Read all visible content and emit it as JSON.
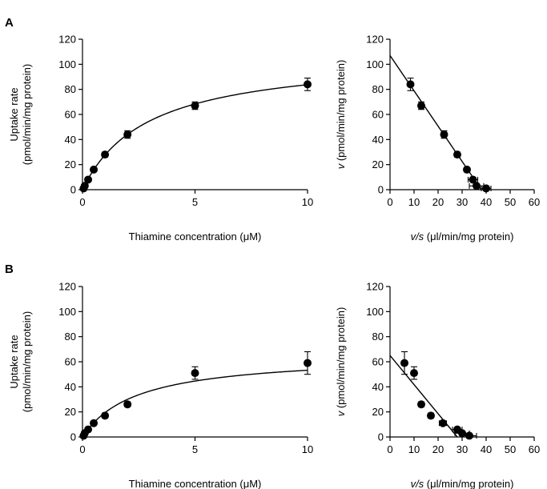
{
  "panels": [
    {
      "letter": "A"
    },
    {
      "letter": "B"
    }
  ],
  "chart_data": [
    {
      "panel": "A",
      "type": "scatter",
      "title": "",
      "xlabel": "Thiamine concentration (μM)",
      "ylabel": "Uptake rate (pmol/min/mg protein)",
      "ylabel_lines": [
        "Uptake rate",
        "(pmol/min/mg protein)"
      ],
      "xlim": [
        0,
        10
      ],
      "ylim": [
        0,
        120
      ],
      "xticks": [
        0,
        5,
        10
      ],
      "yticks": [
        0,
        20,
        40,
        60,
        80,
        100,
        120
      ],
      "grid": false,
      "series": [
        {
          "x": [
            0.05,
            0.1,
            0.25,
            0.5,
            1,
            2,
            5,
            10
          ],
          "y": [
            1,
            3,
            8,
            16,
            28,
            44,
            67,
            84
          ],
          "yerr": [
            0.5,
            0.8,
            1,
            1.5,
            2,
            3,
            3,
            5
          ]
        }
      ],
      "fit": {
        "model": "michaelis-menten",
        "vmax": 108,
        "km": 2.9
      }
    },
    {
      "panel": "A",
      "type": "scatter",
      "title": "",
      "xlabel": "v/s (μl/min/mg protein)",
      "xlabel_parts": [
        "v/s",
        " (μl/min/mg protein)"
      ],
      "ylabel": "v (pmol/min/mg protein)",
      "ylabel_parts": [
        "v",
        " (pmol/min/mg protein)"
      ],
      "xlim": [
        0,
        60
      ],
      "ylim": [
        0,
        120
      ],
      "xticks": [
        0,
        10,
        20,
        30,
        40,
        50,
        60
      ],
      "yticks": [
        0,
        20,
        40,
        60,
        80,
        100,
        120
      ],
      "grid": false,
      "series": [
        {
          "x": [
            8.5,
            13,
            22.5,
            28,
            32,
            34.5,
            36,
            40
          ],
          "y": [
            84,
            67,
            44,
            28,
            16,
            8,
            3,
            1
          ],
          "yerr": [
            5,
            3,
            3,
            2,
            1.5,
            1,
            0.8,
            0.5
          ],
          "xerr": [
            1,
            1,
            1,
            1,
            1,
            2,
            3,
            2
          ]
        }
      ],
      "fit": {
        "model": "linear",
        "x": [
          0,
          38
        ],
        "y": [
          107,
          0
        ]
      }
    },
    {
      "panel": "B",
      "type": "scatter",
      "title": "",
      "xlabel": "Thiamine concentration (μM)",
      "ylabel": "Uptake rate (pmol/min/mg protein)",
      "ylabel_lines": [
        "Uptake rate",
        "(pmol/min/mg protein)"
      ],
      "xlim": [
        0,
        10
      ],
      "ylim": [
        0,
        120
      ],
      "xticks": [
        0,
        5,
        10
      ],
      "yticks": [
        0,
        20,
        40,
        60,
        80,
        100,
        120
      ],
      "grid": false,
      "series": [
        {
          "x": [
            0.05,
            0.1,
            0.25,
            0.5,
            1,
            2,
            5,
            10
          ],
          "y": [
            1,
            3,
            6,
            11,
            17,
            26,
            51,
            59
          ],
          "yerr": [
            0.5,
            0.8,
            1,
            1.5,
            2,
            2,
            5,
            9
          ]
        }
      ],
      "fit": {
        "model": "michaelis-menten",
        "vmax": 66,
        "km": 2.4
      }
    },
    {
      "panel": "B",
      "type": "scatter",
      "title": "",
      "xlabel": "v/s (μl/min/mg protein)",
      "xlabel_parts": [
        "v/s",
        " (μl/min/mg protein)"
      ],
      "ylabel": "v (pmol/min/mg protein)",
      "ylabel_parts": [
        "v",
        " (pmol/min/mg protein)"
      ],
      "xlim": [
        0,
        60
      ],
      "ylim": [
        0,
        120
      ],
      "xticks": [
        0,
        10,
        20,
        30,
        40,
        50,
        60
      ],
      "yticks": [
        0,
        20,
        40,
        60,
        80,
        100,
        120
      ],
      "grid": false,
      "series": [
        {
          "x": [
            6,
            10,
            13,
            17,
            22,
            28,
            30,
            33
          ],
          "y": [
            59,
            51,
            26,
            17,
            11,
            6,
            3,
            1
          ],
          "yerr": [
            9,
            5,
            2,
            2,
            1.5,
            1,
            0.8,
            0.5
          ],
          "xerr": [
            1,
            1,
            1,
            1,
            1.5,
            2,
            3,
            3
          ]
        }
      ],
      "fit": {
        "model": "linear",
        "x": [
          0,
          28
        ],
        "y": [
          65,
          0
        ]
      }
    }
  ]
}
